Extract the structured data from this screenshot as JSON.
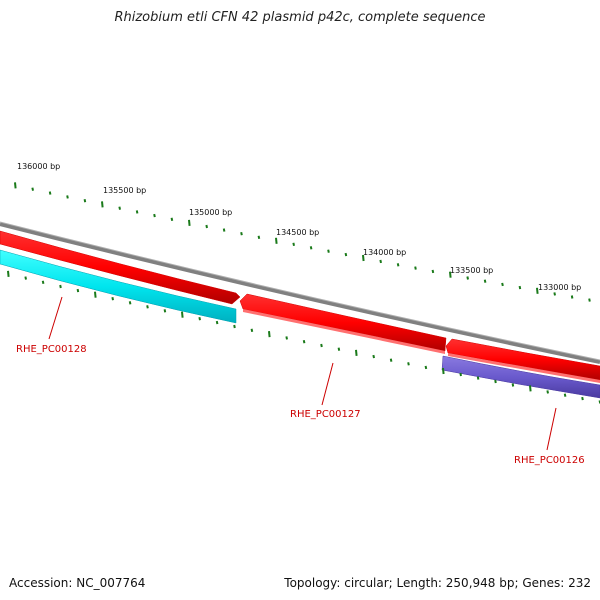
{
  "title": "Rhizobium etli CFN 42 plasmid p42c, complete sequence",
  "footer": {
    "accession": "Accession: NC_007764",
    "summary": "Topology: circular; Length: 250,948 bp; Genes: 232"
  },
  "ruler": {
    "labels": [
      "136000 bp",
      "135500 bp",
      "135000 bp",
      "134500 bp",
      "134000 bp",
      "133500 bp",
      "133000 bp"
    ]
  },
  "genes": [
    {
      "id": "RHE_PC00128",
      "strand": "reverse",
      "color": "#00e5ee"
    },
    {
      "id": "RHE_PC00127",
      "strand": "forward",
      "color": "#ff0000"
    },
    {
      "id": "RHE_PC00126",
      "strand": "reverse",
      "color": "#6a5acd"
    }
  ],
  "colors": {
    "backbone": "#808080",
    "forward_red": "#ff0000",
    "tick": "#1a7a1a",
    "label_line": "#cc0000"
  }
}
